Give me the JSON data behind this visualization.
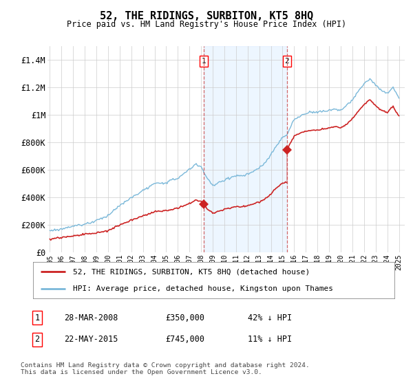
{
  "title": "52, THE RIDINGS, SURBITON, KT5 8HQ",
  "subtitle": "Price paid vs. HM Land Registry's House Price Index (HPI)",
  "ylim": [
    0,
    1500000
  ],
  "yticks": [
    0,
    200000,
    400000,
    600000,
    800000,
    1000000,
    1200000,
    1400000
  ],
  "ytick_labels": [
    "£0",
    "£200K",
    "£400K",
    "£600K",
    "£800K",
    "£1M",
    "£1.2M",
    "£1.4M"
  ],
  "year_start": 1995,
  "year_end": 2025,
  "sale1_year": 2008.23,
  "sale1_price": 350000,
  "sale2_year": 2015.38,
  "sale2_price": 745000,
  "hpi_color": "#7ab8d9",
  "price_color": "#cc2222",
  "shaded_color": "#ddeeff",
  "vline_color": "#cc4444",
  "legend1": "52, THE RIDINGS, SURBITON, KT5 8HQ (detached house)",
  "legend2": "HPI: Average price, detached house, Kingston upon Thames",
  "table_row1": [
    "1",
    "28-MAR-2008",
    "£350,000",
    "42% ↓ HPI"
  ],
  "table_row2": [
    "2",
    "22-MAY-2015",
    "£745,000",
    "11% ↓ HPI"
  ],
  "footnote": "Contains HM Land Registry data © Crown copyright and database right 2024.\nThis data is licensed under the Open Government Licence v3.0."
}
